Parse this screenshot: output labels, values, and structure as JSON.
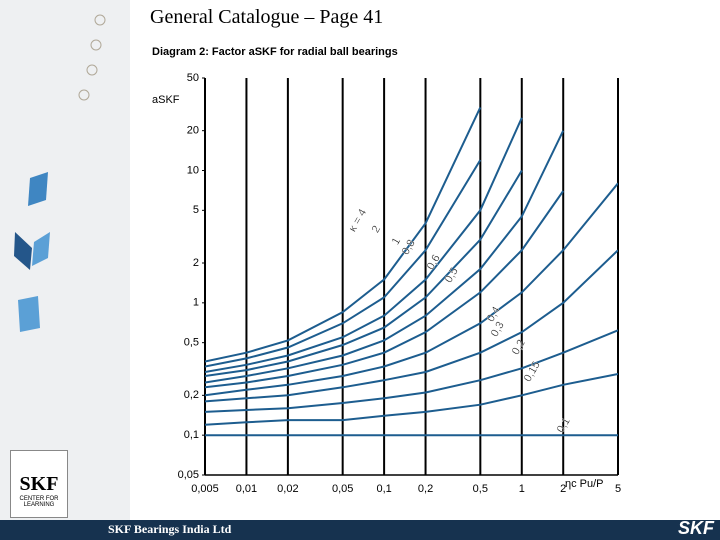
{
  "slide_title": "General Catalogue – Page 41",
  "footer": "SKF Bearings India Ltd",
  "logo_left": {
    "brand": "SKF",
    "caption": "CENTER FOR LEARNING"
  },
  "logo_right": "SKF",
  "chart_data": {
    "type": "line",
    "title": "Diagram 2: Factor aSKF for radial ball bearings",
    "y_label": "aSKF",
    "x_label": "ηc Pu/P",
    "log_x": true,
    "log_y": true,
    "grid": "vertical",
    "x": [
      0.005,
      0.01,
      0.02,
      0.05,
      0.1,
      0.2,
      0.5,
      1,
      2,
      5
    ],
    "xlim": [
      0.005,
      5
    ],
    "ylim": [
      0.05,
      50
    ],
    "xticks": [
      {
        "value": 0.005,
        "label": "0,005"
      },
      {
        "value": 0.01,
        "label": "0,01"
      },
      {
        "value": 0.02,
        "label": "0,02"
      },
      {
        "value": 0.05,
        "label": "0,05"
      },
      {
        "value": 0.1,
        "label": "0,1"
      },
      {
        "value": 0.2,
        "label": "0,2"
      },
      {
        "value": 0.5,
        "label": "0,5"
      },
      1,
      2,
      5
    ],
    "yticks": [
      {
        "value": 0.05,
        "label": "0,05"
      },
      {
        "value": 0.1,
        "label": "0,1"
      },
      {
        "value": 0.2,
        "label": "0,2"
      },
      {
        "value": 0.5,
        "label": "0,5"
      },
      1,
      2,
      5,
      10,
      20,
      50
    ],
    "series": [
      {
        "name": "κ = 4",
        "color": "#1d5d8f",
        "values": [
          0.36,
          0.42,
          0.52,
          0.85,
          1.5,
          4,
          30,
          null,
          null,
          null
        ]
      },
      {
        "name": "2",
        "color": "#1d5d8f",
        "values": [
          0.33,
          0.38,
          0.46,
          0.7,
          1.1,
          2.5,
          12,
          null,
          null,
          null
        ]
      },
      {
        "name": "1",
        "color": "#1d5d8f",
        "values": [
          0.3,
          0.34,
          0.4,
          0.55,
          0.8,
          1.5,
          5,
          25,
          null,
          null
        ]
      },
      {
        "name": "0,8",
        "color": "#1d5d8f",
        "values": [
          0.28,
          0.31,
          0.36,
          0.48,
          0.65,
          1.1,
          3,
          10,
          null,
          null
        ]
      },
      {
        "name": "0,6",
        "color": "#1d5d8f",
        "values": [
          0.25,
          0.28,
          0.32,
          0.4,
          0.52,
          0.8,
          1.8,
          4.5,
          20,
          null
        ]
      },
      {
        "name": "0,5",
        "color": "#1d5d8f",
        "values": [
          0.23,
          0.25,
          0.28,
          0.34,
          0.42,
          0.6,
          1.2,
          2.5,
          7,
          null
        ]
      },
      {
        "name": "0,4",
        "color": "#1d5d8f",
        "values": [
          0.2,
          0.22,
          0.24,
          0.28,
          0.33,
          0.42,
          0.7,
          1.2,
          2.5,
          8
        ]
      },
      {
        "name": "0,3",
        "color": "#1d5d8f",
        "values": [
          0.18,
          0.19,
          0.2,
          0.23,
          0.26,
          0.3,
          0.42,
          0.6,
          1.0,
          2.5
        ]
      },
      {
        "name": "0,2",
        "color": "#1d5d8f",
        "values": [
          0.15,
          0.155,
          0.16,
          0.175,
          0.19,
          0.21,
          0.26,
          0.32,
          0.42,
          0.62
        ]
      },
      {
        "name": "0,15",
        "color": "#1d5d8f",
        "values": [
          0.12,
          0.125,
          0.13,
          0.13,
          0.14,
          0.15,
          0.17,
          0.2,
          0.24,
          0.29
        ]
      },
      {
        "name": "0,1",
        "color": "#1d5d8f",
        "values": [
          0.1,
          0.1,
          0.1,
          0.1,
          0.1,
          0.1,
          0.1,
          0.1,
          0.1,
          0.1
        ]
      }
    ]
  }
}
